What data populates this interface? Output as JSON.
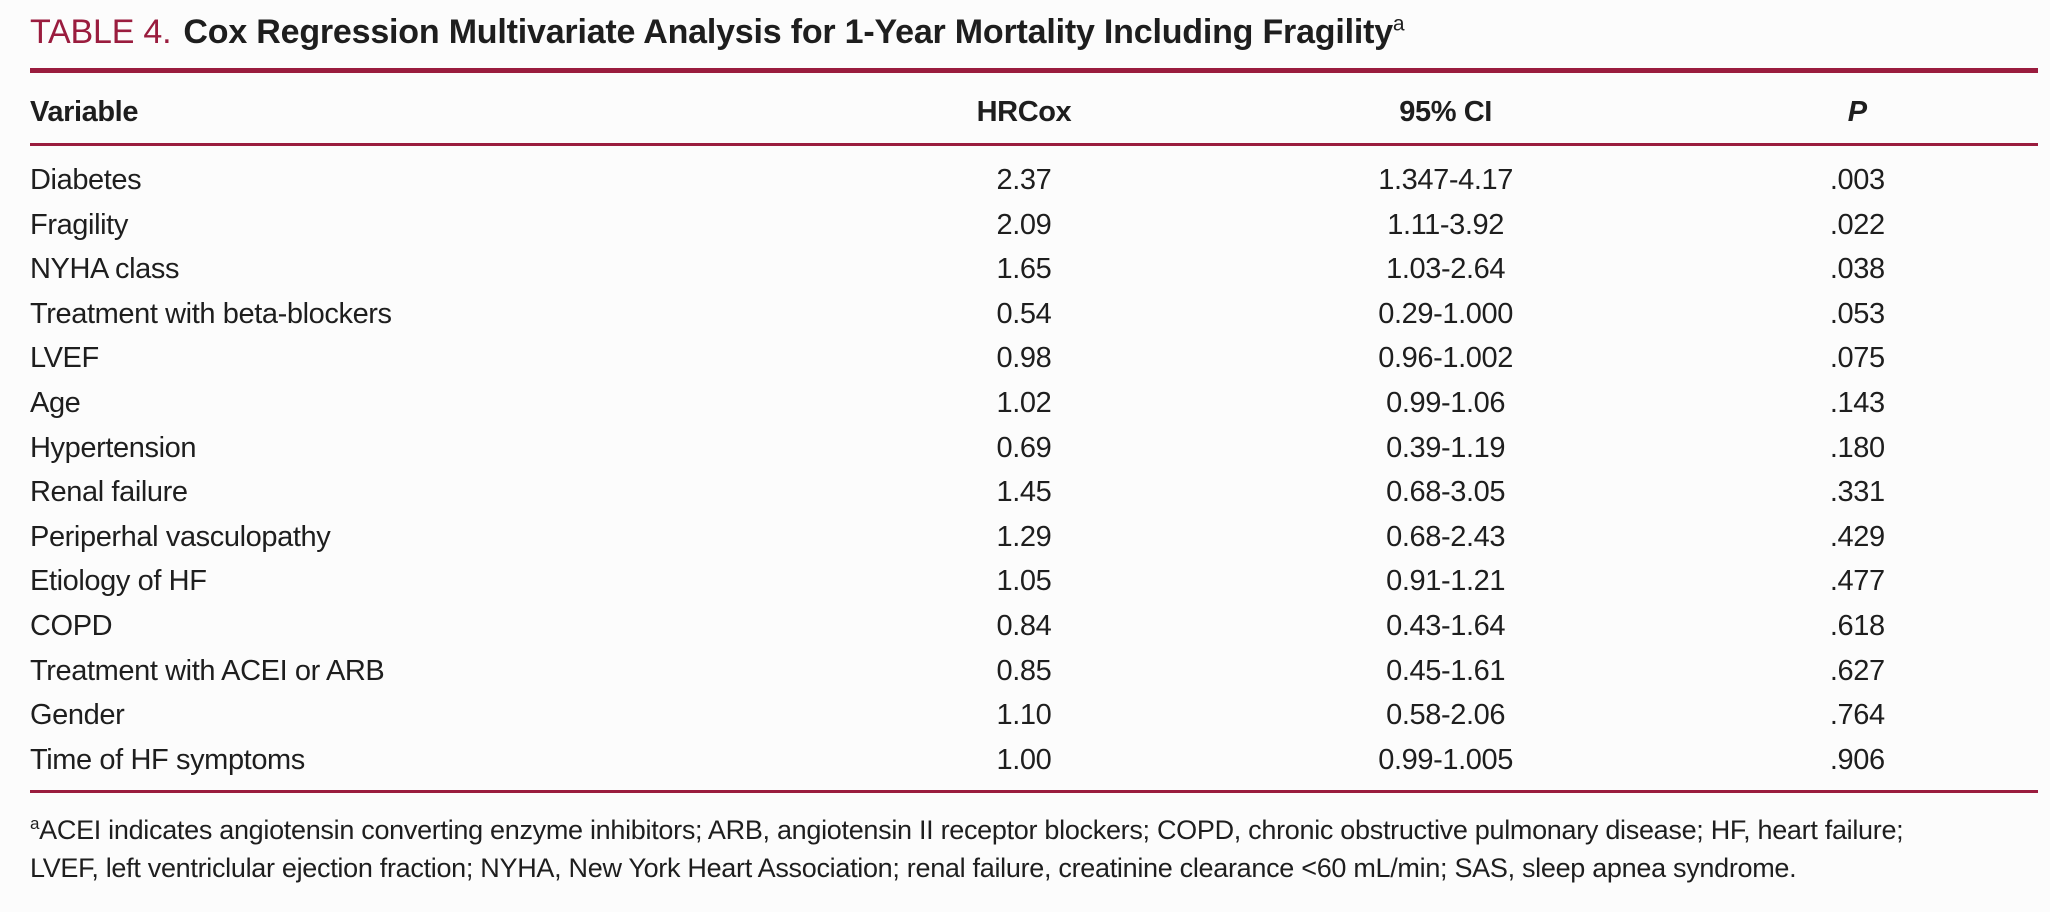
{
  "title": {
    "label": "TABLE 4.",
    "text": "Cox Regression Multivariate Analysis for 1-Year Mortality Including Fragility",
    "footnote_marker": "a"
  },
  "table": {
    "columns": [
      "Variable",
      "HRCox",
      "95% CI",
      "P"
    ],
    "rows": [
      {
        "variable": "Diabetes",
        "hrcox": "2.37",
        "ci": "1.347-4.17",
        "p": ".003"
      },
      {
        "variable": "Fragility",
        "hrcox": "2.09",
        "ci": "1.11-3.92",
        "p": ".022"
      },
      {
        "variable": "NYHA class",
        "hrcox": "1.65",
        "ci": "1.03-2.64",
        "p": ".038"
      },
      {
        "variable": "Treatment with beta-blockers",
        "hrcox": "0.54",
        "ci": "0.29-1.000",
        "p": ".053"
      },
      {
        "variable": "LVEF",
        "hrcox": "0.98",
        "ci": "0.96-1.002",
        "p": ".075"
      },
      {
        "variable": "Age",
        "hrcox": "1.02",
        "ci": "0.99-1.06",
        "p": ".143"
      },
      {
        "variable": "Hypertension",
        "hrcox": "0.69",
        "ci": "0.39-1.19",
        "p": ".180"
      },
      {
        "variable": "Renal failure",
        "hrcox": "1.45",
        "ci": "0.68-3.05",
        "p": ".331"
      },
      {
        "variable": "Periperhal vasculopathy",
        "hrcox": "1.29",
        "ci": "0.68-2.43",
        "p": ".429"
      },
      {
        "variable": "Etiology of HF",
        "hrcox": "1.05",
        "ci": "0.91-1.21",
        "p": ".477"
      },
      {
        "variable": "COPD",
        "hrcox": "0.84",
        "ci": "0.43-1.64",
        "p": ".618"
      },
      {
        "variable": "Treatment with ACEI or ARB",
        "hrcox": "0.85",
        "ci": "0.45-1.61",
        "p": ".627"
      },
      {
        "variable": "Gender",
        "hrcox": "1.10",
        "ci": "0.58-2.06",
        "p": ".764"
      },
      {
        "variable": "Time of HF symptoms",
        "hrcox": "1.00",
        "ci": "0.99-1.005",
        "p": ".906"
      }
    ]
  },
  "footnote": {
    "marker": "a",
    "line1": "ACEI indicates angiotensin converting enzyme inhibitors; ARB, angiotensin II receptor blockers; COPD, chronic obstructive pulmonary disease; HF, heart failure;",
    "line2": "LVEF, left ventriclular ejection fraction; NYHA, New York Heart Association; renal failure, creatinine clearance <60 mL/min; SAS, sleep apnea syndrome."
  },
  "colors": {
    "accent": "#9a1c3e",
    "text": "#1e1e1e",
    "background": "#fcfcfc"
  }
}
